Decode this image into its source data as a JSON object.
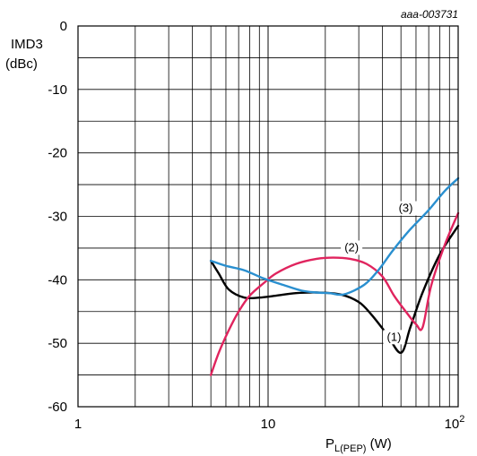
{
  "chart_data": {
    "type": "line",
    "reference": "aaa-003731",
    "ylabel_line1": "IMD3",
    "ylabel_line2": "(dBc)",
    "xlabel_main": "P",
    "xlabel_sub": "L(PEP)",
    "xlabel_unit": " (W)",
    "xscale": "log",
    "xlim": [
      1,
      100
    ],
    "ylim": [
      -60,
      0
    ],
    "grid": true,
    "x_ticks": [
      {
        "value": 1,
        "label": "1"
      },
      {
        "value": 10,
        "label": "10"
      },
      {
        "value": 100,
        "label": "10",
        "sup": "2"
      }
    ],
    "y_ticks": [
      {
        "value": 0,
        "label": "0"
      },
      {
        "value": -10,
        "label": "-10"
      },
      {
        "value": -20,
        "label": "-20"
      },
      {
        "value": -30,
        "label": "-30"
      },
      {
        "value": -40,
        "label": "-40"
      },
      {
        "value": -50,
        "label": "-50"
      },
      {
        "value": -60,
        "label": "-60"
      }
    ],
    "series": [
      {
        "name": "(1)",
        "color": "#000000",
        "label_at": {
          "x": 46,
          "y": -49.6
        },
        "points": [
          [
            5,
            -37
          ],
          [
            5.5,
            -39
          ],
          [
            6.2,
            -41.5
          ],
          [
            7.5,
            -42.8
          ],
          [
            9,
            -42.8
          ],
          [
            11,
            -42.5
          ],
          [
            14,
            -42.1
          ],
          [
            18,
            -42
          ],
          [
            24,
            -42.3
          ],
          [
            30,
            -43.5
          ],
          [
            35,
            -45.5
          ],
          [
            42,
            -48.5
          ],
          [
            50,
            -51.5
          ],
          [
            56,
            -47.5
          ],
          [
            65,
            -42
          ],
          [
            80,
            -36
          ],
          [
            100,
            -31.5
          ]
        ]
      },
      {
        "name": "(2)",
        "color": "#e0245e",
        "label_at": {
          "x": 27.5,
          "y": -35.5
        },
        "points": [
          [
            5,
            -55
          ],
          [
            5.5,
            -51.5
          ],
          [
            6.2,
            -48
          ],
          [
            7,
            -45
          ],
          [
            8,
            -42.5
          ],
          [
            9.5,
            -40.5
          ],
          [
            11,
            -39
          ],
          [
            14,
            -37.5
          ],
          [
            18,
            -36.7
          ],
          [
            22,
            -36.5
          ],
          [
            27,
            -36.7
          ],
          [
            33,
            -37.5
          ],
          [
            40,
            -39.5
          ],
          [
            46,
            -42.5
          ],
          [
            53,
            -45
          ],
          [
            60,
            -47
          ],
          [
            65,
            -47.5
          ],
          [
            72,
            -41
          ],
          [
            85,
            -34.5
          ],
          [
            100,
            -29.5
          ]
        ]
      },
      {
        "name": "(3)",
        "color": "#2a8fcf",
        "label_at": {
          "x": 53,
          "y": -29.3
        },
        "points": [
          [
            5,
            -37
          ],
          [
            6,
            -37.8
          ],
          [
            7.5,
            -38.5
          ],
          [
            9.5,
            -39.8
          ],
          [
            12,
            -40.8
          ],
          [
            15,
            -41.7
          ],
          [
            18,
            -42
          ],
          [
            21,
            -42.1
          ],
          [
            25,
            -42.3
          ],
          [
            32,
            -40.8
          ],
          [
            38,
            -38.5
          ],
          [
            45,
            -35.5
          ],
          [
            55,
            -32.3
          ],
          [
            70,
            -29
          ],
          [
            85,
            -26
          ],
          [
            100,
            -24
          ]
        ]
      }
    ]
  }
}
